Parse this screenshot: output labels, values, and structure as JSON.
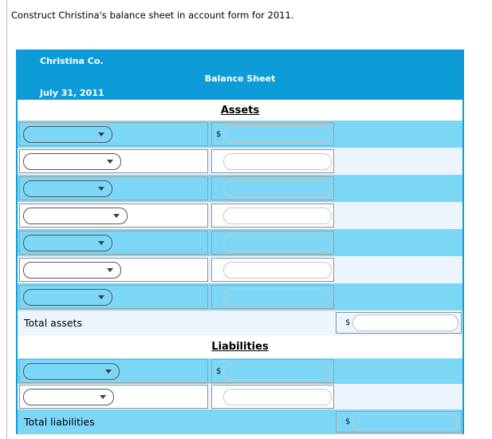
{
  "page": {
    "instruction": "Construct Christina's balance sheet in account form for 2011."
  },
  "sheet": {
    "header": {
      "company": "Christina Co.",
      "title": "Balance Sheet",
      "date": "July 31, 2011"
    },
    "currency_symbol": "$",
    "sections": [
      {
        "title": "Assets",
        "rows": [
          {
            "shade": "blue",
            "dollar": "$",
            "select_value": "",
            "amount_value": "",
            "select_width": 112
          },
          {
            "shade": "pale",
            "dollar": "",
            "select_value": "",
            "amount_value": "",
            "select_width": 123
          },
          {
            "shade": "blue",
            "dollar": "",
            "select_value": "",
            "amount_value": "",
            "select_width": 112
          },
          {
            "shade": "pale",
            "dollar": "",
            "select_value": "",
            "amount_value": "",
            "select_width": 131
          },
          {
            "shade": "blue",
            "dollar": "",
            "select_value": "",
            "amount_value": "",
            "select_width": 112
          },
          {
            "shade": "pale",
            "dollar": "",
            "select_value": "",
            "amount_value": "",
            "select_width": 123
          },
          {
            "shade": "blue",
            "dollar": "",
            "select_value": "",
            "amount_value": "",
            "select_width": 112
          }
        ],
        "total": {
          "label": "Total assets",
          "shade": "pale",
          "dollar": "$",
          "value": ""
        }
      },
      {
        "title": "Liabilities",
        "rows": [
          {
            "shade": "blue",
            "dollar": "$",
            "select_value": "",
            "amount_value": "",
            "select_width": 121
          },
          {
            "shade": "pale",
            "dollar": "",
            "select_value": "",
            "amount_value": "",
            "select_width": 114
          }
        ],
        "total": {
          "label": "Total liabilities",
          "shade": "blue",
          "dollar": "$",
          "value": ""
        }
      }
    ],
    "colors": {
      "accent_blue": "#0e9cd9",
      "row_blue": "#7cd7f7",
      "row_pale": "#ecf5fd",
      "cell_border_tan": "#ab9d8f",
      "cell_border_gray": "#8b9298",
      "frame_gray": "#bdbdbd"
    }
  }
}
